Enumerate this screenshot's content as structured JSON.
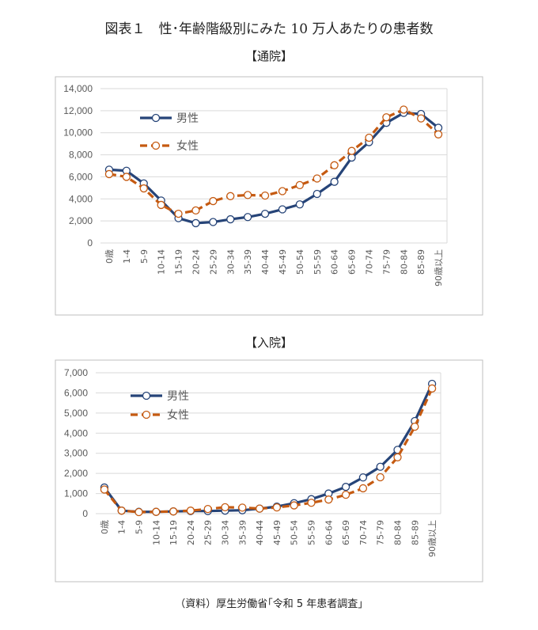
{
  "title": "図表１　性･年齢階級別にみた 10 万人あたりの患者数",
  "source": "（資料）厚生労働省｢令和 5 年患者調査｣",
  "colors": {
    "male": "#264478",
    "female": "#C55A11",
    "grid": "#d9d9d9",
    "axis_text": "#595959"
  },
  "chart_data": [
    {
      "type": "line",
      "title": "【通院】",
      "categories": [
        "0歳",
        "1-4",
        "5-9",
        "10-14",
        "15-19",
        "20-24",
        "25-29",
        "30-34",
        "35-39",
        "40-44",
        "45-49",
        "50-54",
        "55-59",
        "60-64",
        "65-69",
        "70-74",
        "75-79",
        "80-84",
        "85-89",
        "90歳以上"
      ],
      "ylim": [
        0,
        14000
      ],
      "yticks": [
        0,
        2000,
        4000,
        6000,
        8000,
        10000,
        12000,
        14000
      ],
      "ytick_labels": [
        "0",
        "2,000",
        "4,000",
        "6,000",
        "8,000",
        "10,000",
        "12,000",
        "14,000"
      ],
      "grid": true,
      "legend": "top-left",
      "series": [
        {
          "name": "男性",
          "style": "solid",
          "values": [
            6650,
            6550,
            5400,
            3850,
            2250,
            1800,
            1900,
            2150,
            2350,
            2650,
            3050,
            3500,
            4450,
            5550,
            7750,
            9150,
            10900,
            11800,
            11700,
            10450
          ]
        },
        {
          "name": "女性",
          "style": "dashed",
          "values": [
            6250,
            6000,
            4950,
            3450,
            2650,
            2950,
            3800,
            4250,
            4350,
            4300,
            4700,
            5250,
            5850,
            7050,
            8350,
            9550,
            11400,
            12100,
            11300,
            9850
          ]
        }
      ]
    },
    {
      "type": "line",
      "title": "【入院】",
      "categories": [
        "0歳",
        "1-4",
        "5-9",
        "10-14",
        "15-19",
        "20-24",
        "25-29",
        "30-34",
        "35-39",
        "40-44",
        "45-49",
        "50-54",
        "55-59",
        "60-64",
        "65-69",
        "70-74",
        "75-79",
        "80-84",
        "85-89",
        "90歳以上"
      ],
      "ylim": [
        0,
        7000
      ],
      "yticks": [
        0,
        1000,
        2000,
        3000,
        4000,
        5000,
        6000,
        7000
      ],
      "ytick_labels": [
        "0",
        "1,000",
        "2,000",
        "3,000",
        "4,000",
        "5,000",
        "6,000",
        "7,000"
      ],
      "grid": true,
      "legend": "top-left",
      "series": [
        {
          "name": "男性",
          "style": "solid",
          "values": [
            1300,
            150,
            90,
            90,
            110,
            130,
            130,
            150,
            170,
            250,
            350,
            520,
            720,
            1000,
            1330,
            1800,
            2330,
            3170,
            4600,
            6450
          ]
        },
        {
          "name": "女性",
          "style": "dashed",
          "values": [
            1200,
            150,
            80,
            90,
            110,
            150,
            230,
            320,
            300,
            250,
            310,
            410,
            540,
            700,
            940,
            1260,
            1810,
            2800,
            4320,
            6220
          ]
        }
      ]
    }
  ]
}
